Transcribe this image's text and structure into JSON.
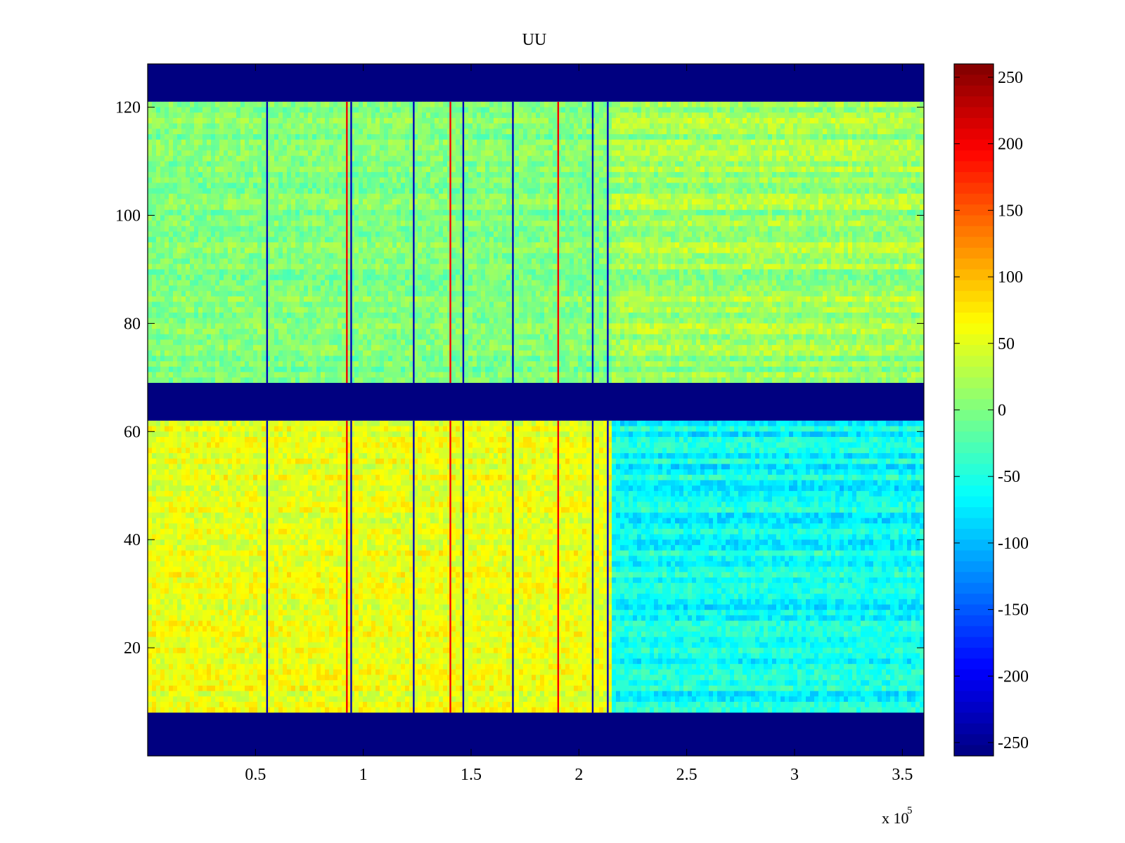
{
  "chart_data": {
    "type": "heatmap",
    "title": "UU",
    "xlabel": "",
    "ylabel": "",
    "colormap": "jet",
    "x_range": [
      0,
      360000
    ],
    "y_range": [
      0,
      128
    ],
    "x_ticks": [
      50000,
      100000,
      150000,
      200000,
      250000,
      300000,
      350000
    ],
    "x_tick_labels": [
      "0.5",
      "1",
      "1.5",
      "2",
      "2.5",
      "3",
      "3.5"
    ],
    "x_exponent_label": "x 10",
    "x_exponent_power": "5",
    "y_ticks": [
      20,
      40,
      60,
      80,
      100,
      120
    ],
    "y_tick_labels": [
      "20",
      "40",
      "60",
      "80",
      "100",
      "120"
    ],
    "colorbar": {
      "range": [
        -260,
        260
      ],
      "ticks": [
        250,
        200,
        150,
        100,
        50,
        0,
        -50,
        -100,
        -150,
        -200,
        -250
      ],
      "tick_labels": [
        "250",
        "200",
        "150",
        "100",
        "50",
        "0",
        "-50",
        "-100",
        "-150",
        "-200",
        "-250"
      ]
    },
    "bands": [
      {
        "y_range": [
          121,
          128
        ],
        "value": -260,
        "description": "no data (fill)"
      },
      {
        "y_range": [
          69,
          121
        ],
        "value_early": 0,
        "value_late": 15
      },
      {
        "y_range": [
          62,
          69
        ],
        "value": -260,
        "description": "no data (fill)"
      },
      {
        "y_range": [
          8,
          62
        ],
        "value_early": 55,
        "value_late": -60
      },
      {
        "y_range": [
          0,
          8
        ],
        "value": -260,
        "description": "no data (fill)"
      }
    ],
    "spike_columns_x": [
      55000,
      92000,
      94000,
      123000,
      140000,
      146000,
      169000,
      190000,
      206000,
      213000
    ]
  }
}
